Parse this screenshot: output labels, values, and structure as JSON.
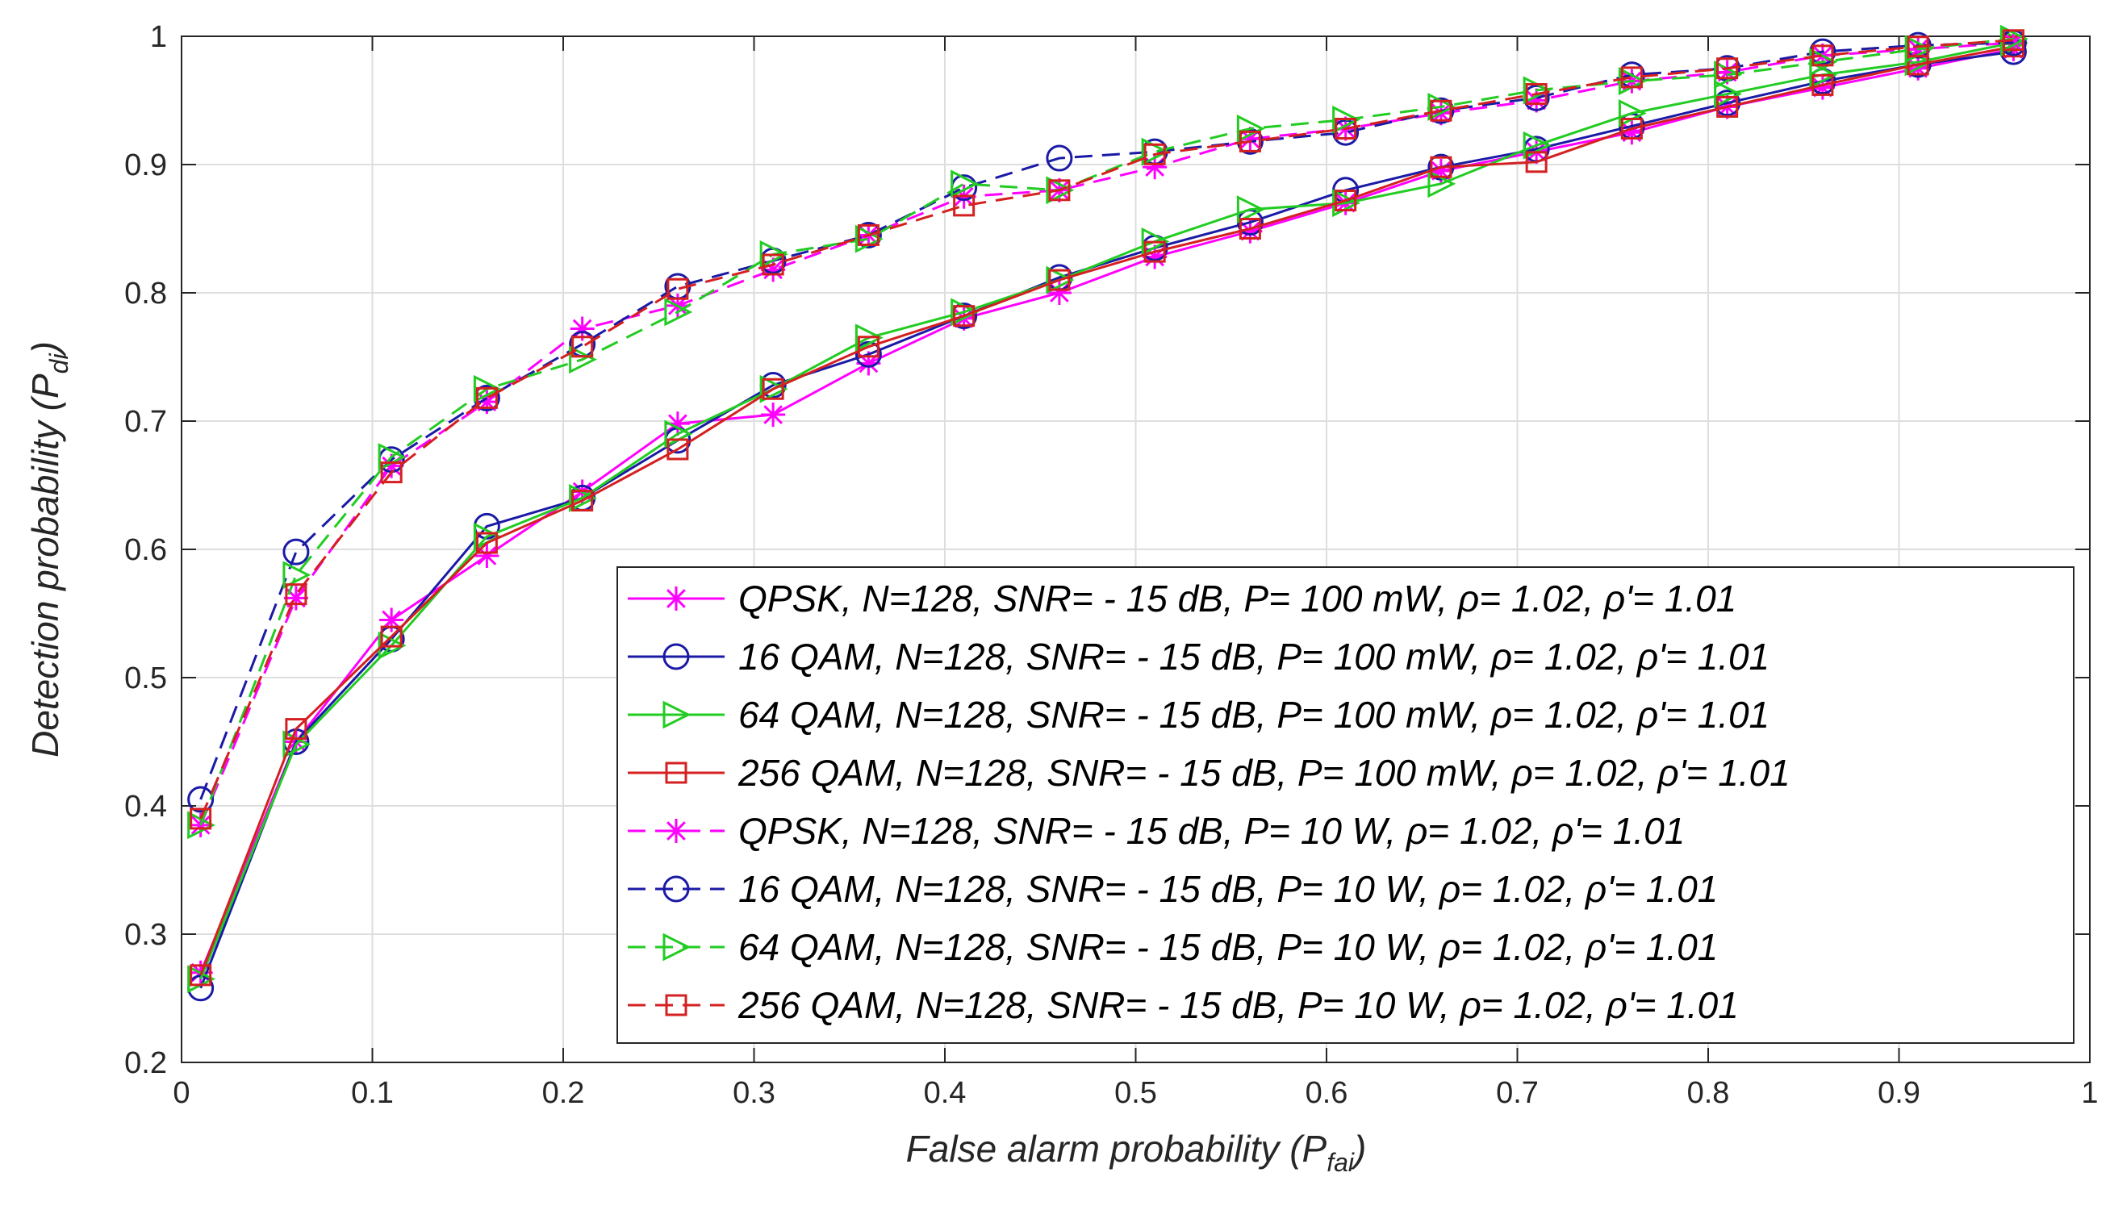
{
  "chart_data": {
    "type": "line",
    "xlabel": "False alarm probability (P",
    "xlabel_sub": "fai",
    "xlabel_close": ")",
    "ylabel": "Detection probability (P",
    "ylabel_sub": "di",
    "ylabel_close": ")",
    "xlim": [
      0,
      1
    ],
    "ylim": [
      0.2,
      1
    ],
    "x_ticks": [
      0,
      0.1,
      0.2,
      0.3,
      0.4,
      0.5,
      0.6,
      0.7,
      0.8,
      0.9,
      1
    ],
    "x_tick_labels": [
      "0",
      "0.1",
      "0.2",
      "0.3",
      "0.4",
      "0.5",
      "0.6",
      "0.7",
      "0.8",
      "0.9",
      "1"
    ],
    "y_ticks": [
      0.2,
      0.3,
      0.4,
      0.5,
      0.6,
      0.7,
      0.8,
      0.9,
      1
    ],
    "y_tick_labels": [
      "0.2",
      "0.3",
      "0.4",
      "0.5",
      "0.6",
      "0.7",
      "0.8",
      "0.9",
      "1"
    ],
    "grid": true,
    "legend_position": "bottom-right",
    "x": [
      0.01,
      0.06,
      0.11,
      0.16,
      0.21,
      0.26,
      0.31,
      0.36,
      0.41,
      0.46,
      0.51,
      0.56,
      0.61,
      0.66,
      0.71,
      0.76,
      0.81,
      0.86,
      0.91,
      0.96
    ],
    "series": [
      {
        "name": "QPSK, N=128, SNR= - 15 dB, P= 100 mW, ρ= 1.02, ρ'= 1.01",
        "color": "#ff00ff",
        "marker": "star",
        "dash": "solid",
        "values": [
          0.27,
          0.45,
          0.545,
          0.595,
          0.645,
          0.698,
          0.705,
          0.745,
          0.78,
          0.8,
          0.828,
          0.848,
          0.87,
          0.895,
          0.91,
          0.925,
          0.945,
          0.96,
          0.975,
          0.99
        ]
      },
      {
        "name": "16 QAM, N=128, SNR= - 15 dB, P= 100 mW, ρ= 1.02, ρ'= 1.01",
        "color": "#1a1aa6",
        "marker": "circle",
        "dash": "solid",
        "values": [
          0.258,
          0.45,
          0.53,
          0.618,
          0.64,
          0.685,
          0.728,
          0.752,
          0.782,
          0.812,
          0.835,
          0.855,
          0.88,
          0.898,
          0.912,
          0.93,
          0.948,
          0.965,
          0.978,
          0.988
        ]
      },
      {
        "name": "64 QAM, N=128, SNR= - 15 dB, P= 100 mW, ρ= 1.02, ρ'= 1.01",
        "color": "#22cc22",
        "marker": "triangle-right",
        "dash": "solid",
        "values": [
          0.265,
          0.448,
          0.525,
          0.61,
          0.64,
          0.69,
          0.725,
          0.765,
          0.785,
          0.81,
          0.84,
          0.865,
          0.87,
          0.885,
          0.915,
          0.94,
          0.955,
          0.97,
          0.98,
          0.995
        ]
      },
      {
        "name": "256 QAM, N=128, SNR= - 15 dB, P= 100 mW, ρ= 1.02, ρ'= 1.01",
        "color": "#d42020",
        "marker": "square",
        "dash": "solid",
        "values": [
          0.268,
          0.46,
          0.532,
          0.605,
          0.638,
          0.678,
          0.725,
          0.758,
          0.782,
          0.81,
          0.832,
          0.85,
          0.872,
          0.898,
          0.902,
          0.928,
          0.945,
          0.962,
          0.978,
          0.992
        ]
      },
      {
        "name": "QPSK, N=128, SNR= - 15 dB, P= 10 W, ρ= 1.02, ρ'= 1.01",
        "color": "#ff00ff",
        "marker": "star",
        "dash": "dashed",
        "values": [
          0.385,
          0.562,
          0.665,
          0.715,
          0.772,
          0.79,
          0.818,
          0.845,
          0.875,
          0.88,
          0.898,
          0.92,
          0.928,
          0.94,
          0.95,
          0.965,
          0.972,
          0.985,
          0.99,
          0.995
        ]
      },
      {
        "name": "16 QAM, N=128, SNR= - 15 dB, P= 10 W, ρ= 1.02, ρ'= 1.01",
        "color": "#1a1aa6",
        "marker": "circle",
        "dash": "dashed",
        "values": [
          0.405,
          0.598,
          0.67,
          0.718,
          0.76,
          0.805,
          0.825,
          0.845,
          0.882,
          0.905,
          0.91,
          0.918,
          0.925,
          0.942,
          0.952,
          0.97,
          0.975,
          0.988,
          0.993,
          0.995
        ]
      },
      {
        "name": "64 QAM, N=128, SNR= - 15 dB, P= 10 W, ρ= 1.02, ρ'= 1.01",
        "color": "#22cc22",
        "marker": "triangle-right",
        "dash": "dashed",
        "values": [
          0.385,
          0.58,
          0.672,
          0.725,
          0.748,
          0.785,
          0.83,
          0.842,
          0.885,
          0.88,
          0.91,
          0.928,
          0.935,
          0.945,
          0.958,
          0.965,
          0.97,
          0.98,
          0.99,
          0.998
        ]
      },
      {
        "name": "256 QAM, N=128, SNR= - 15 dB, P= 10 W, ρ= 1.02, ρ'= 1.01",
        "color": "#d42020",
        "marker": "square",
        "dash": "dashed",
        "values": [
          0.39,
          0.565,
          0.66,
          0.718,
          0.758,
          0.803,
          0.822,
          0.845,
          0.868,
          0.88,
          0.908,
          0.918,
          0.928,
          0.942,
          0.955,
          0.968,
          0.975,
          0.985,
          0.992,
          0.997
        ]
      }
    ]
  }
}
